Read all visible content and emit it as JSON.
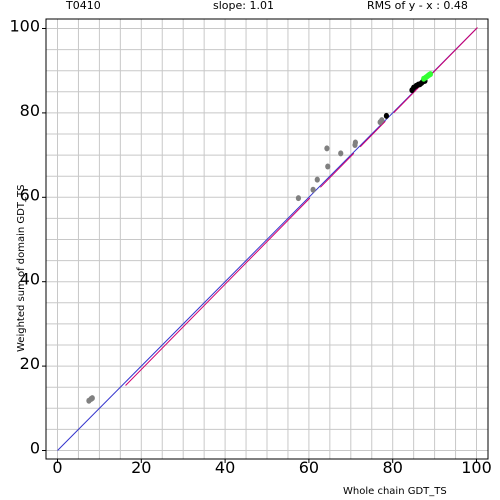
{
  "header": {
    "target_id": "T0410",
    "slope_text": "slope: 1.01",
    "rms_text": "RMS of  y - x : 0.48"
  },
  "colors": {
    "grid": "#c8c8c8",
    "frame": "#000000",
    "fit_line": "#d0006f",
    "diagonal": "#3333cc",
    "point_gray": "#808080",
    "point_black": "#000000",
    "point_green": "#33ff33"
  },
  "chart_data": {
    "type": "scatter",
    "title": "",
    "xlabel": "Whole chain GDT_TS",
    "ylabel": "Weighted sum of domain GDT_TS",
    "xlim": [
      -3,
      102
    ],
    "ylim": [
      -2,
      102
    ],
    "x_ticks": [
      0,
      20,
      40,
      60,
      80,
      100
    ],
    "y_ticks": [
      0,
      20,
      40,
      60,
      80,
      100
    ],
    "x_tick_labels": [
      "0",
      "20",
      "40",
      "60",
      "80",
      "100"
    ],
    "y_tick_labels": [
      "0",
      "20",
      "40",
      "60",
      "80",
      "100"
    ],
    "grid": true,
    "grid_step": 5,
    "reference_line": {
      "name": "y = x",
      "from": [
        0,
        0
      ],
      "to": [
        100,
        100
      ]
    },
    "fit_line": {
      "slope": 1.01,
      "x_range": [
        16,
        100
      ],
      "segments": [
        [
          16,
          60
        ],
        [
          62.5,
          70.5
        ],
        [
          72,
          78
        ],
        [
          80,
          100
        ]
      ]
    },
    "series": [
      {
        "group": "gray",
        "points": [
          [
            7.5,
            11.8
          ],
          [
            8.0,
            12.2
          ],
          [
            8.3,
            12.4
          ],
          [
            57.5,
            59.8
          ],
          [
            61.0,
            61.8
          ],
          [
            62.0,
            64.2
          ],
          [
            64.5,
            67.3
          ],
          [
            64.3,
            71.6
          ],
          [
            67.6,
            70.4
          ],
          [
            71.0,
            72.4
          ],
          [
            71.1,
            73.0
          ],
          [
            77.0,
            77.8
          ],
          [
            77.4,
            78.3
          ]
        ]
      },
      {
        "group": "black",
        "points": [
          [
            78.5,
            79.3
          ],
          [
            84.6,
            85.4
          ],
          [
            85.0,
            86.0
          ],
          [
            85.6,
            86.4
          ],
          [
            86.1,
            86.7
          ],
          [
            86.5,
            86.8
          ],
          [
            86.9,
            87.1
          ],
          [
            87.2,
            87.4
          ],
          [
            87.7,
            87.6
          ]
        ]
      },
      {
        "group": "green",
        "points": [
          [
            87.4,
            88.1
          ],
          [
            87.9,
            88.4
          ],
          [
            88.3,
            88.7
          ],
          [
            88.7,
            89.0
          ],
          [
            89.0,
            89.2
          ]
        ]
      }
    ]
  }
}
